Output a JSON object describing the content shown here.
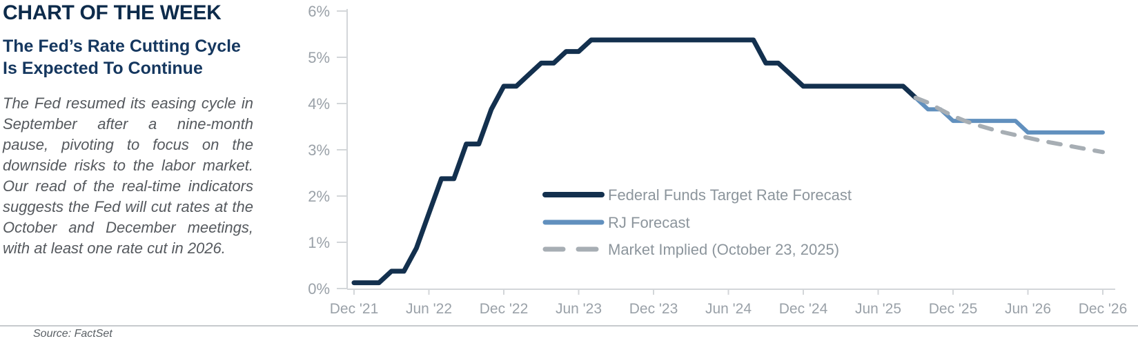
{
  "header": {
    "title": "CHART OF THE WEEK",
    "subtitle": "The Fed’s Rate Cutting Cycle Is Expected To Continue",
    "body": "The Fed resumed its easing cycle in September after a nine-month pause, pivoting to focus on the downside risks to the labor market. Our read of the real-time indicators suggests the Fed will cut rates at the October and December meetings, with at least one rate cut in 2026.",
    "source": "Source: FactSet"
  },
  "colors": {
    "title": "#0D2B4B",
    "subtitle": "#15375F",
    "body_text": "#55595E",
    "axis_text": "#9AA1A8",
    "legend_text": "#8C959C",
    "axis_line": "#D3D6D9",
    "divider": "#C6CACD",
    "source_text": "#5A6065",
    "fed_line": "#13304E",
    "rj_line": "#6190BE",
    "market_line": "#A7AEB4"
  },
  "chart_data": {
    "type": "line",
    "title": "",
    "xlabel": "",
    "ylabel": "",
    "x_unit": "month",
    "x_range": [
      "Dec 2021",
      "Dec 2026"
    ],
    "months_total": 60,
    "ylim": [
      0,
      6
    ],
    "grid": false,
    "legend_position": "inside-center",
    "x_tick_labels": [
      "Dec '21",
      "Jun '22",
      "Dec '22",
      "Jun '23",
      "Dec '23",
      "Jun '24",
      "Dec '24",
      "Jun '25",
      "Dec '25",
      "Jun '26",
      "Dec '26"
    ],
    "y_tick_labels": [
      "0%",
      "1%",
      "2%",
      "3%",
      "4%",
      "5%",
      "6%"
    ],
    "series": [
      {
        "name": "Federal Funds Target Rate Forecast",
        "color": "#13304E",
        "style": "solid",
        "start_month_index": 0,
        "start_month": "Dec 2021",
        "end_month": "Sep 2025",
        "values": [
          0.125,
          0.125,
          0.125,
          0.375,
          0.375,
          0.875,
          1.625,
          2.375,
          2.375,
          3.125,
          3.125,
          3.875,
          4.375,
          4.375,
          4.625,
          4.875,
          4.875,
          5.125,
          5.125,
          5.375,
          5.375,
          5.375,
          5.375,
          5.375,
          5.375,
          5.375,
          5.375,
          5.375,
          5.375,
          5.375,
          5.375,
          5.375,
          5.375,
          4.875,
          4.875,
          4.625,
          4.375,
          4.375,
          4.375,
          4.375,
          4.375,
          4.375,
          4.375,
          4.375,
          4.375,
          4.125
        ]
      },
      {
        "name": "RJ Forecast",
        "color": "#6190BE",
        "style": "solid",
        "start_month_index": 45,
        "start_month": "Sep 2025",
        "end_month": "Dec 2026",
        "values": [
          4.125,
          3.875,
          3.875,
          3.625,
          3.625,
          3.625,
          3.625,
          3.625,
          3.625,
          3.375,
          3.375,
          3.375,
          3.375,
          3.375,
          3.375,
          3.375
        ]
      },
      {
        "name": "Market Implied (October 23, 2025)",
        "color": "#A7AEB4",
        "style": "dashed",
        "start_month_index": 45,
        "start_month": "Sep 2025",
        "end_month": "Dec 2026",
        "values": [
          4.125,
          4.02,
          3.87,
          3.73,
          3.62,
          3.53,
          3.45,
          3.38,
          3.32,
          3.26,
          3.2,
          3.15,
          3.1,
          3.05,
          3.0,
          2.95
        ]
      }
    ]
  }
}
